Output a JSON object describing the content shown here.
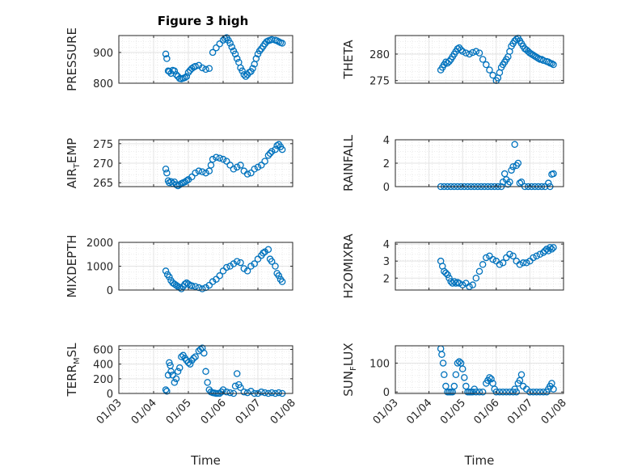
{
  "figure": {
    "title": "Figure 3 high",
    "accent_color": "#0072BD"
  },
  "chart_data": [
    {
      "type": "scatter",
      "ylabel": "PRESSURE",
      "ylim": [
        800,
        955
      ],
      "yticks": [
        800,
        900
      ],
      "xlim": [
        0,
        5
      ],
      "grid": true,
      "x": [
        1.35,
        1.38,
        1.42,
        1.45,
        1.5,
        1.55,
        1.6,
        1.65,
        1.7,
        1.75,
        1.8,
        1.85,
        1.9,
        1.95,
        2.0,
        2.05,
        2.1,
        2.15,
        2.2,
        2.3,
        2.4,
        2.5,
        2.6,
        2.7,
        2.8,
        2.9,
        3.0,
        3.05,
        3.1,
        3.15,
        3.2,
        3.25,
        3.3,
        3.35,
        3.4,
        3.45,
        3.5,
        3.55,
        3.6,
        3.65,
        3.7,
        3.75,
        3.8,
        3.85,
        3.9,
        3.95,
        4.0,
        4.05,
        4.1,
        4.15,
        4.2,
        4.25,
        4.3,
        4.35,
        4.4,
        4.5,
        4.55,
        4.6,
        4.65,
        4.7
      ],
      "y": [
        895,
        880,
        840,
        838,
        832,
        842,
        840,
        828,
        822,
        815,
        814,
        816,
        818,
        822,
        835,
        842,
        848,
        852,
        855,
        858,
        850,
        845,
        848,
        900,
        915,
        928,
        940,
        945,
        948,
        940,
        930,
        918,
        905,
        895,
        880,
        868,
        850,
        840,
        828,
        822,
        828,
        835,
        838,
        848,
        862,
        880,
        895,
        905,
        912,
        920,
        928,
        935,
        938,
        940,
        942,
        940,
        938,
        935,
        932,
        930
      ]
    },
    {
      "type": "scatter",
      "ylabel": "THETA",
      "ylim": [
        274.5,
        283.5
      ],
      "yticks": [
        275,
        280
      ],
      "xlim": [
        0,
        5
      ],
      "grid": true,
      "x": [
        1.35,
        1.4,
        1.45,
        1.5,
        1.55,
        1.6,
        1.65,
        1.7,
        1.75,
        1.8,
        1.85,
        1.9,
        1.95,
        2.0,
        2.1,
        2.2,
        2.3,
        2.4,
        2.5,
        2.6,
        2.7,
        2.8,
        2.9,
        3.0,
        3.05,
        3.1,
        3.15,
        3.2,
        3.25,
        3.3,
        3.35,
        3.4,
        3.45,
        3.5,
        3.55,
        3.6,
        3.65,
        3.7,
        3.75,
        3.8,
        3.85,
        3.9,
        3.95,
        4.0,
        4.05,
        4.1,
        4.15,
        4.2,
        4.25,
        4.3,
        4.35,
        4.4,
        4.5,
        4.55,
        4.6,
        4.65,
        4.7
      ],
      "y": [
        277,
        277.5,
        278,
        278.5,
        278.3,
        278.6,
        279,
        279.5,
        280,
        280.5,
        281,
        281.2,
        280.8,
        280.5,
        280.2,
        280,
        280.3,
        280.5,
        280.2,
        279,
        278,
        277,
        276,
        275,
        275.5,
        276.5,
        277.5,
        278,
        278.5,
        279,
        279.5,
        280.5,
        281.5,
        282,
        282.5,
        282.8,
        283,
        282.5,
        282,
        281.5,
        281,
        280.8,
        280.5,
        280.2,
        280,
        279.8,
        279.6,
        279.4,
        279.2,
        279,
        279,
        278.8,
        278.6,
        278.5,
        278.3,
        278.2,
        278
      ]
    },
    {
      "type": "scatter",
      "ylabel": "AIR_TEMP",
      "ylim": [
        264,
        276
      ],
      "yticks": [
        265,
        270,
        275
      ],
      "xlim": [
        0,
        5
      ],
      "grid": true,
      "x": [
        1.35,
        1.38,
        1.42,
        1.45,
        1.5,
        1.55,
        1.6,
        1.65,
        1.7,
        1.75,
        1.8,
        1.85,
        1.9,
        1.95,
        2.0,
        2.1,
        2.2,
        2.3,
        2.4,
        2.5,
        2.6,
        2.65,
        2.7,
        2.8,
        2.9,
        3.0,
        3.1,
        3.2,
        3.3,
        3.4,
        3.5,
        3.6,
        3.7,
        3.8,
        3.9,
        4.0,
        4.1,
        4.2,
        4.3,
        4.35,
        4.4,
        4.5,
        4.55,
        4.6,
        4.65,
        4.7
      ],
      "y": [
        268.5,
        267.5,
        265.5,
        265,
        265.3,
        264.8,
        265.2,
        264.5,
        264.2,
        264.5,
        264.8,
        265,
        265.2,
        265.5,
        265.8,
        266.5,
        267.5,
        268,
        267.8,
        267.5,
        268,
        269.5,
        271,
        271.5,
        271.3,
        271,
        270.5,
        269.5,
        268.5,
        269,
        269.5,
        268,
        267.2,
        267.5,
        268.5,
        269,
        269.5,
        270.5,
        272,
        272.5,
        273,
        273.5,
        274.5,
        274.8,
        274.2,
        273.5
      ]
    },
    {
      "type": "scatter",
      "ylabel": "RAINFALL",
      "ylim": [
        0,
        4
      ],
      "yticks": [
        0,
        2,
        4
      ],
      "xlim": [
        0,
        5
      ],
      "grid": true,
      "x": [
        1.35,
        1.45,
        1.55,
        1.65,
        1.75,
        1.85,
        1.95,
        2.05,
        2.15,
        2.25,
        2.35,
        2.45,
        2.55,
        2.65,
        2.75,
        2.85,
        2.95,
        3.05,
        3.15,
        3.2,
        3.25,
        3.3,
        3.35,
        3.4,
        3.45,
        3.5,
        3.55,
        3.6,
        3.65,
        3.7,
        3.75,
        3.85,
        3.95,
        4.05,
        4.15,
        4.25,
        4.35,
        4.45,
        4.55,
        4.6,
        4.65,
        4.7
      ],
      "y": [
        0,
        0,
        0,
        0,
        0,
        0,
        0,
        0,
        0,
        0,
        0,
        0,
        0,
        0,
        0,
        0,
        0,
        0,
        0,
        0.4,
        1.1,
        0.6,
        0.2,
        0.4,
        1.4,
        1.7,
        3.6,
        1.8,
        2,
        0.3,
        0.4,
        0,
        0,
        0,
        0,
        0,
        0,
        0,
        0.3,
        0,
        1.05,
        1.1
      ]
    },
    {
      "type": "scatter",
      "ylabel": "MIXDEPTH",
      "ylim": [
        0,
        2000
      ],
      "yticks": [
        0,
        1000,
        2000
      ],
      "xlim": [
        0,
        5
      ],
      "grid": true,
      "x": [
        1.35,
        1.4,
        1.45,
        1.5,
        1.55,
        1.6,
        1.65,
        1.7,
        1.75,
        1.8,
        1.85,
        1.9,
        1.95,
        2.0,
        2.05,
        2.1,
        2.2,
        2.3,
        2.4,
        2.5,
        2.6,
        2.7,
        2.8,
        2.9,
        3.0,
        3.1,
        3.2,
        3.3,
        3.4,
        3.5,
        3.6,
        3.7,
        3.8,
        3.9,
        4.0,
        4.1,
        4.15,
        4.2,
        4.3,
        4.35,
        4.4,
        4.5,
        4.55,
        4.6,
        4.65,
        4.7
      ],
      "y": [
        800,
        650,
        550,
        400,
        300,
        250,
        200,
        150,
        100,
        50,
        150,
        250,
        300,
        250,
        200,
        180,
        150,
        100,
        50,
        100,
        200,
        350,
        450,
        600,
        800,
        950,
        1000,
        1100,
        1200,
        1150,
        900,
        800,
        1000,
        1100,
        1300,
        1450,
        1550,
        1600,
        1700,
        1300,
        1200,
        1000,
        700,
        600,
        450,
        350
      ]
    },
    {
      "type": "scatter",
      "ylabel": "H2OMIXRA",
      "ylim": [
        1.3,
        4.1
      ],
      "yticks": [
        2,
        3,
        4
      ],
      "xlim": [
        0,
        5
      ],
      "grid": true,
      "x": [
        1.35,
        1.4,
        1.45,
        1.5,
        1.55,
        1.6,
        1.65,
        1.7,
        1.75,
        1.8,
        1.85,
        1.9,
        2.0,
        2.1,
        2.2,
        2.3,
        2.4,
        2.5,
        2.6,
        2.7,
        2.8,
        2.9,
        3.0,
        3.1,
        3.2,
        3.3,
        3.4,
        3.5,
        3.6,
        3.7,
        3.8,
        3.9,
        4.0,
        4.1,
        4.2,
        4.3,
        4.4,
        4.45,
        4.5,
        4.55,
        4.6,
        4.65,
        4.7
      ],
      "y": [
        3.0,
        2.7,
        2.4,
        2.3,
        2.2,
        2.0,
        1.8,
        1.7,
        1.8,
        1.7,
        1.75,
        1.7,
        1.6,
        1.7,
        1.5,
        1.6,
        2.0,
        2.4,
        2.8,
        3.2,
        3.3,
        3.1,
        3.0,
        2.8,
        2.9,
        3.2,
        3.4,
        3.3,
        3.0,
        2.8,
        2.9,
        2.9,
        3.0,
        3.2,
        3.3,
        3.4,
        3.5,
        3.6,
        3.7,
        3.6,
        3.8,
        3.7,
        3.8
      ]
    },
    {
      "type": "scatter",
      "ylabel": "TERR_MSL",
      "ylim": [
        0,
        650
      ],
      "yticks": [
        0,
        200,
        400,
        600
      ],
      "xlim": [
        0,
        5
      ],
      "grid": true,
      "x": [
        1.35,
        1.38,
        1.42,
        1.45,
        1.48,
        1.5,
        1.55,
        1.6,
        1.65,
        1.7,
        1.75,
        1.8,
        1.85,
        1.9,
        1.95,
        2.0,
        2.05,
        2.1,
        2.15,
        2.2,
        2.3,
        2.35,
        2.4,
        2.45,
        2.5,
        2.55,
        2.6,
        2.65,
        2.7,
        2.75,
        2.8,
        2.85,
        2.9,
        2.95,
        3.0,
        3.1,
        3.2,
        3.3,
        3.35,
        3.4,
        3.45,
        3.5,
        3.6,
        3.7,
        3.8,
        3.9,
        4.0,
        4.1,
        4.2,
        4.3,
        4.4,
        4.5,
        4.6,
        4.7
      ],
      "y": [
        50,
        30,
        250,
        420,
        380,
        300,
        250,
        150,
        200,
        300,
        350,
        500,
        520,
        480,
        450,
        420,
        400,
        450,
        480,
        500,
        580,
        600,
        620,
        550,
        300,
        150,
        50,
        20,
        10,
        5,
        0,
        0,
        0,
        20,
        50,
        20,
        10,
        0,
        100,
        270,
        120,
        80,
        20,
        10,
        30,
        0,
        0,
        20,
        10,
        0,
        10,
        0,
        10,
        0
      ]
    },
    {
      "type": "scatter",
      "ylabel": "SUN_FLUX",
      "ylim": [
        -5,
        160
      ],
      "yticks": [
        0,
        100
      ],
      "xlim": [
        0,
        5
      ],
      "grid": true,
      "x": [
        1.35,
        1.38,
        1.42,
        1.45,
        1.5,
        1.55,
        1.6,
        1.65,
        1.7,
        1.75,
        1.8,
        1.85,
        1.9,
        1.95,
        2.0,
        2.05,
        2.1,
        2.15,
        2.2,
        2.25,
        2.3,
        2.35,
        2.4,
        2.5,
        2.6,
        2.7,
        2.75,
        2.8,
        2.85,
        2.9,
        2.95,
        3.0,
        3.1,
        3.2,
        3.3,
        3.4,
        3.5,
        3.55,
        3.6,
        3.65,
        3.7,
        3.75,
        3.8,
        3.9,
        4.0,
        4.1,
        4.2,
        4.3,
        4.4,
        4.5,
        4.55,
        4.6,
        4.65,
        4.7
      ],
      "y": [
        150,
        130,
        100,
        60,
        20,
        0,
        0,
        0,
        0,
        20,
        60,
        100,
        105,
        100,
        80,
        50,
        20,
        0,
        0,
        0,
        0,
        10,
        0,
        0,
        0,
        30,
        40,
        50,
        45,
        30,
        10,
        0,
        0,
        0,
        0,
        0,
        0,
        10,
        0,
        30,
        40,
        60,
        20,
        10,
        0,
        0,
        0,
        0,
        0,
        0,
        10,
        20,
        30,
        10
      ]
    }
  ],
  "x_axis": {
    "tick_labels": [
      "01/03",
      "01/04",
      "01/05",
      "01/06",
      "01/07",
      "01/08"
    ],
    "label": "Time"
  }
}
